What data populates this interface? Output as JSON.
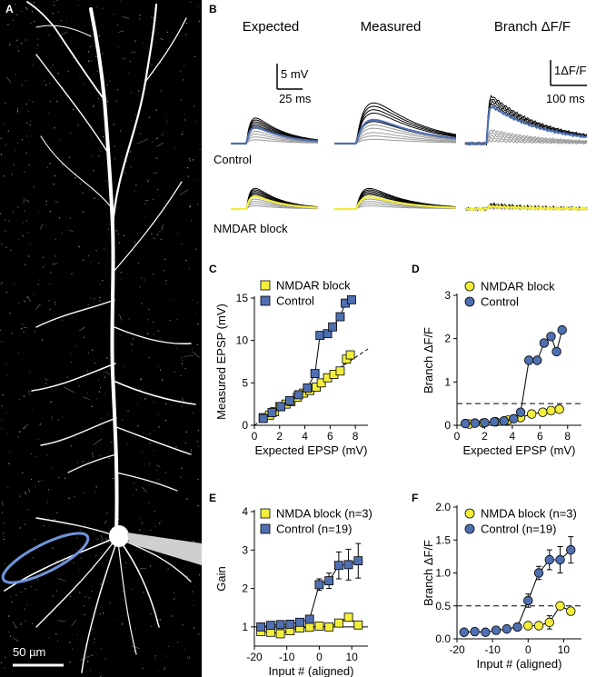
{
  "panel_labels": {
    "A": "A",
    "B": "B",
    "C": "C",
    "D": "D",
    "E": "E",
    "F": "F"
  },
  "colors": {
    "control": "#4f6fb0",
    "nmdar": "#f2ef3c",
    "trace_black": "#000000",
    "trace_grey": "#9a9a9a",
    "roi": "#6f93d8"
  },
  "panel_a": {
    "scale_bar_label": "50 µm"
  },
  "panel_b": {
    "column_titles": [
      "Expected",
      "Measured",
      "Branch ΔF/F"
    ],
    "row_labels": [
      "Control",
      "NMDAR block"
    ],
    "scale_bar_1": {
      "y_label": "5 mV",
      "x_label": "25 ms"
    },
    "scale_bar_2": {
      "y_label": "1ΔF/F",
      "x_label": "100 ms"
    }
  },
  "chart_data": [
    {
      "id": "C",
      "type": "line",
      "xlabel": "Expected EPSP (mV)",
      "ylabel": "Measured EPSP (mV)",
      "xlim": [
        0,
        9
      ],
      "ylim": [
        0,
        15
      ],
      "xticks": [
        0,
        2,
        4,
        6,
        8
      ],
      "yticks": [
        0,
        5,
        10,
        15
      ],
      "legend_position": "top-left",
      "identity_line": true,
      "series": [
        {
          "name": "NMDAR block",
          "color_key": "nmdar",
          "marker": "square",
          "x": [
            0.7,
            1.2,
            1.6,
            2.0,
            2.5,
            2.9,
            3.4,
            3.9,
            4.4,
            4.9,
            5.3,
            5.8,
            6.3,
            6.8,
            7.3,
            7.6
          ],
          "y": [
            0.9,
            1.2,
            1.6,
            2.2,
            2.5,
            2.8,
            3.3,
            3.8,
            4.1,
            4.5,
            5.0,
            5.6,
            6.0,
            6.4,
            7.8,
            8.3
          ]
        },
        {
          "name": "Control",
          "color_key": "control",
          "marker": "square",
          "x": [
            0.7,
            1.4,
            2.1,
            2.8,
            3.5,
            4.2,
            4.8,
            5.2,
            5.8,
            6.2,
            6.8,
            7.2,
            7.7
          ],
          "y": [
            0.8,
            1.5,
            2.2,
            2.9,
            3.6,
            4.4,
            6.1,
            10.6,
            10.8,
            11.6,
            12.8,
            14.4,
            14.8
          ]
        }
      ]
    },
    {
      "id": "D",
      "type": "line",
      "xlabel": "Expected EPSP (mV)",
      "ylabel": "Branch  ΔF/F",
      "xlim": [
        0,
        9
      ],
      "ylim": [
        0,
        3
      ],
      "xticks": [
        0,
        2,
        4,
        6,
        8
      ],
      "yticks": [
        0,
        1,
        2,
        3
      ],
      "legend_position": "top-right",
      "threshold_y": 0.5,
      "series": [
        {
          "name": "NMDAR block",
          "color_key": "nmdar",
          "marker": "circle",
          "x": [
            0.9,
            1.9,
            2.8,
            3.7,
            4.6,
            5.4,
            6.2,
            6.8,
            7.4
          ],
          "y": [
            0.03,
            0.05,
            0.08,
            0.12,
            0.18,
            0.26,
            0.3,
            0.34,
            0.37
          ]
        },
        {
          "name": "Control",
          "color_key": "control",
          "marker": "circle",
          "x": [
            0.6,
            1.3,
            2.0,
            2.7,
            3.4,
            4.1,
            4.6,
            5.2,
            5.8,
            6.3,
            6.8,
            7.2,
            7.6
          ],
          "y": [
            0.04,
            0.05,
            0.06,
            0.08,
            0.1,
            0.15,
            0.3,
            1.5,
            1.5,
            1.9,
            2.05,
            1.7,
            2.2
          ]
        }
      ]
    },
    {
      "id": "E",
      "type": "line",
      "xlabel": "Input # (aligned)",
      "ylabel": "Gain",
      "xlim": [
        -20,
        15
      ],
      "ylim": [
        0.5,
        4
      ],
      "xticks": [
        -20,
        -10,
        0,
        10
      ],
      "yticks": [
        1,
        2,
        3,
        4
      ],
      "legend_position": "top-left",
      "reference_y": 1,
      "series": [
        {
          "name": "NMDA block (n=3)",
          "color_key": "nmdar",
          "marker": "square",
          "x": [
            -18,
            -15,
            -12,
            -9,
            -6,
            -3,
            0,
            3,
            6,
            9,
            12
          ],
          "y": [
            0.88,
            0.86,
            0.82,
            0.9,
            0.97,
            0.99,
            1.02,
            1.0,
            1.1,
            1.25,
            1.05
          ],
          "err": [
            0.08,
            0.08,
            0.08,
            0.08,
            0.08,
            0.06,
            0.06,
            0.06,
            0.08,
            0.1,
            0.08
          ]
        },
        {
          "name": "Control (n=19)",
          "color_key": "control",
          "marker": "square",
          "x": [
            -18,
            -15,
            -12,
            -9,
            -6,
            -3,
            0,
            3,
            6,
            9,
            12
          ],
          "y": [
            1.0,
            1.04,
            1.06,
            1.07,
            1.12,
            1.2,
            2.1,
            2.2,
            2.6,
            2.62,
            2.72
          ],
          "err": [
            0.08,
            0.08,
            0.06,
            0.06,
            0.06,
            0.08,
            0.15,
            0.2,
            0.35,
            0.4,
            0.45
          ]
        }
      ]
    },
    {
      "id": "F",
      "type": "line",
      "xlabel": "Input # (aligned)",
      "ylabel": "Branch  ΔF/F",
      "xlim": [
        -20,
        15
      ],
      "ylim": [
        0,
        2
      ],
      "xticks": [
        -20,
        -10,
        0,
        10
      ],
      "yticks": [
        0,
        0.5,
        1.0,
        1.5,
        2.0
      ],
      "ytick_labels": [
        "0.0",
        "0.5",
        "1.0",
        "1.5",
        "2.0"
      ],
      "legend_position": "top-left",
      "threshold_y": 0.5,
      "series": [
        {
          "name": "NMDA block (n=3)",
          "color_key": "nmdar",
          "marker": "circle",
          "x": [
            0,
            3,
            6,
            9,
            12
          ],
          "y": [
            0.2,
            0.2,
            0.25,
            0.5,
            0.42
          ],
          "err": [
            0.02,
            0.02,
            0.1,
            0.05,
            0.05
          ]
        },
        {
          "name": "Control (n=19)",
          "color_key": "control",
          "marker": "circle",
          "x": [
            -18,
            -15,
            -12,
            -9,
            -6,
            -3,
            0,
            3,
            6,
            9,
            12
          ],
          "y": [
            0.1,
            0.11,
            0.1,
            0.13,
            0.15,
            0.18,
            0.58,
            1.0,
            1.2,
            1.2,
            1.35
          ],
          "err": [
            0.03,
            0.03,
            0.03,
            0.03,
            0.03,
            0.05,
            0.1,
            0.1,
            0.15,
            0.2,
            0.2
          ]
        }
      ]
    }
  ]
}
